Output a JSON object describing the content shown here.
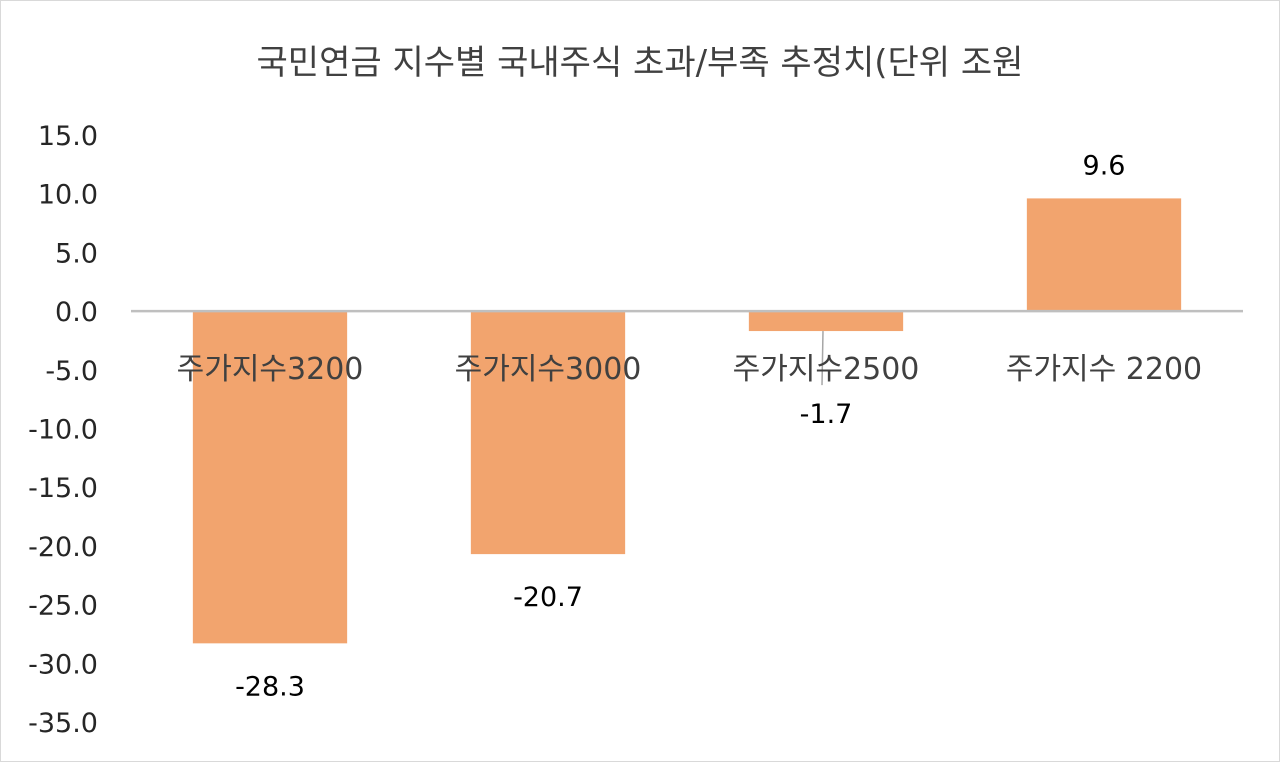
{
  "chart_data": {
    "type": "bar",
    "title": "국민연금 지수별 국내주식 초과/부족 추정치(단위 조원",
    "xlabel": "",
    "ylabel": "",
    "categories": [
      "주가지수3200",
      "주가지수3000",
      "주가지수2500",
      "주가지수 2200"
    ],
    "values": [
      -28.3,
      -20.7,
      -1.7,
      9.6
    ],
    "value_labels": [
      "-28.3",
      "-20.7",
      "-1.7",
      "9.6"
    ],
    "ylim": [
      -35,
      15
    ],
    "y_ticks": [
      15,
      10,
      5,
      0,
      -5,
      -10,
      -15,
      -20,
      -25,
      -30,
      -35
    ],
    "y_tick_labels": [
      "15.0",
      "10.0",
      "5.0",
      "0.0",
      "-5.0",
      "-10.0",
      "-15.0",
      "-20.0",
      "-25.0",
      "-30.0",
      "-35.0"
    ],
    "grid": false,
    "legend": "none",
    "bar_color": "#f2a46e",
    "axis_color": "#bfbfbf"
  }
}
